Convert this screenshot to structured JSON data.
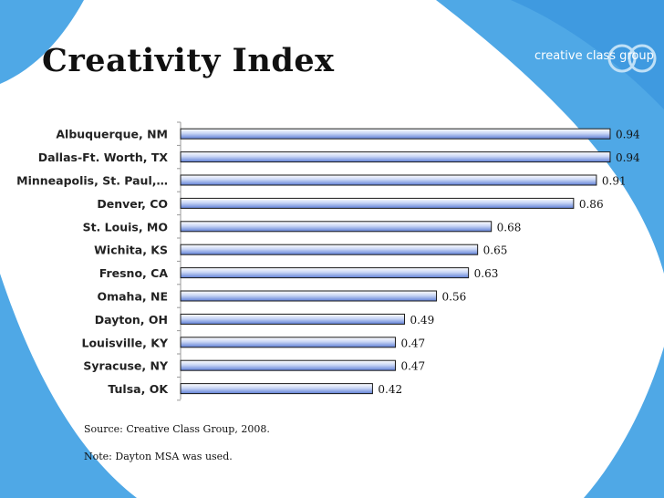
{
  "slide": {
    "title": "Creativity Index",
    "logo_text": "creative class group",
    "source": "Source:  Creative Class Group, 2008.",
    "note": "Note: Dayton MSA was used.",
    "colors": {
      "accent": "#4fa8e6",
      "bar_top": "#ffffff",
      "bar_bottom": "#5f7fd6"
    }
  },
  "chart_data": {
    "type": "bar",
    "orientation": "horizontal",
    "categories": [
      "Albuquerque, NM",
      "Dallas-Ft. Worth, TX",
      "Minneapolis, St. Paul,…",
      "Denver, CO",
      "St. Louis, MO",
      "Wichita, KS",
      "Fresno, CA",
      "Omaha, NE",
      "Dayton, OH",
      "Louisville, KY",
      "Syracuse, NY",
      "Tulsa, OK"
    ],
    "values": [
      0.94,
      0.94,
      0.91,
      0.86,
      0.68,
      0.65,
      0.63,
      0.56,
      0.49,
      0.47,
      0.47,
      0.42
    ],
    "value_labels": [
      "0.94",
      "0.94",
      "0.91",
      "0.86",
      "0.68",
      "0.65",
      "0.63",
      "0.56",
      "0.49",
      "0.47",
      "0.47",
      "0.42"
    ],
    "xlim": [
      0,
      1.0
    ],
    "grid": false,
    "legend": "none"
  }
}
